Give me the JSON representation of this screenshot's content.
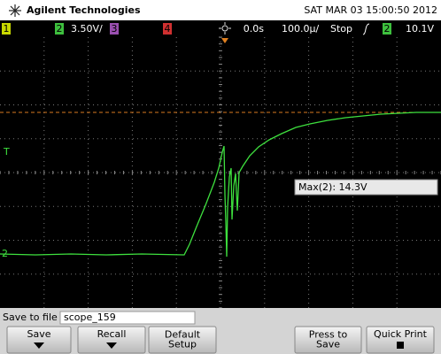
{
  "header": {
    "brand": "Agilent Technologies",
    "datetime": "SAT MAR 03 15:00:50 2012"
  },
  "status_bar": {
    "channels": [
      {
        "label": "1"
      },
      {
        "label": "2",
        "scale": "3.50V/"
      },
      {
        "label": "3"
      },
      {
        "label": "4"
      }
    ],
    "time_offset": "0.0s",
    "time_scale": "100.0µ/",
    "run_state": "Stop",
    "trigger_source": "2",
    "trigger_level": "10.1V"
  },
  "graticule": {
    "trigger_marker": "T",
    "channel_marker": "2",
    "measurement": "Max(2): 14.3V"
  },
  "file_bar": {
    "label": "Save to file = ",
    "filename": "scope_159"
  },
  "softkeys": [
    {
      "lines": [
        "Save"
      ]
    },
    {
      "lines": [
        "Recall"
      ]
    },
    {
      "lines": [
        "Default",
        "Setup"
      ]
    },
    {
      "lines": [
        "Press to",
        "Save"
      ]
    },
    {
      "lines": [
        "Quick Print"
      ]
    }
  ]
}
